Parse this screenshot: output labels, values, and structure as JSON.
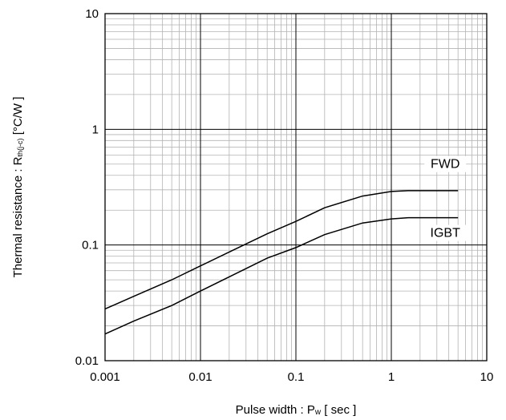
{
  "chart_data": {
    "type": "line",
    "x_scale": "log",
    "y_scale": "log",
    "xlim": [
      0.001,
      10
    ],
    "ylim": [
      0.01,
      10
    ],
    "grid": true,
    "xlabel": "Pulse width : Pw [ sec ]",
    "xlabel_main": "Pulse width : P",
    "xlabel_sub": "w",
    "xlabel_tail": " [ sec ]",
    "ylabel": "Thermal resistance : Rth(j-c) [°C/W ]",
    "ylabel_main": "Thermal resistance : R",
    "ylabel_sub": "th(j-c)",
    "ylabel_tail": " [°C/W ]",
    "x_ticks": [
      "0.001",
      "0.01",
      "0.1",
      "1",
      "10"
    ],
    "x_tick_values": [
      0.001,
      0.01,
      0.1,
      1,
      10
    ],
    "y_ticks": [
      "0.01",
      "0.1",
      "1",
      "10"
    ],
    "y_tick_values": [
      0.01,
      0.1,
      1,
      10
    ],
    "series": [
      {
        "name": "FWD",
        "x": [
          0.001,
          0.002,
          0.005,
          0.01,
          0.02,
          0.05,
          0.1,
          0.2,
          0.5,
          1,
          1.5,
          2,
          5
        ],
        "y": [
          0.028,
          0.036,
          0.05,
          0.066,
          0.087,
          0.125,
          0.16,
          0.21,
          0.265,
          0.29,
          0.295,
          0.295,
          0.295
        ]
      },
      {
        "name": "IGBT",
        "x": [
          0.001,
          0.002,
          0.005,
          0.01,
          0.02,
          0.05,
          0.1,
          0.2,
          0.5,
          1,
          1.5,
          2,
          5
        ],
        "y": [
          0.017,
          0.022,
          0.03,
          0.04,
          0.053,
          0.077,
          0.095,
          0.123,
          0.155,
          0.168,
          0.172,
          0.172,
          0.172
        ]
      }
    ]
  }
}
